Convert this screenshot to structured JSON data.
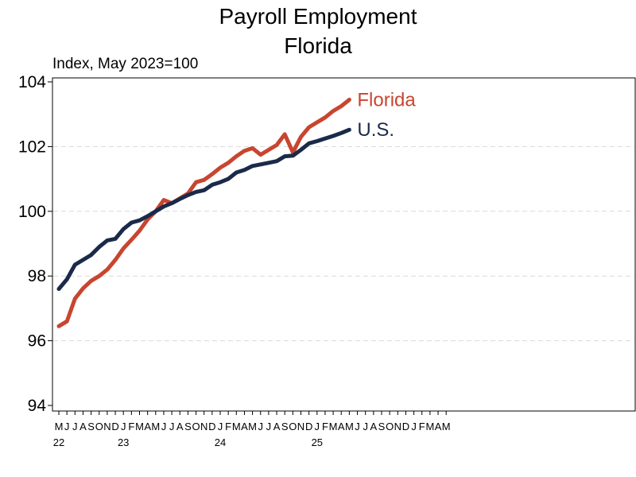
{
  "colors": {
    "florida": "#c8452f",
    "us": "#1b2a49",
    "grid": "#d9d9d9",
    "axis": "#000000"
  },
  "chart_data": {
    "type": "line",
    "title_line1": "Payroll Employment",
    "title_line2": "Florida",
    "ylabel": "Index, May 2023=100",
    "ylim": [
      94,
      104
    ],
    "yticks": [
      94,
      96,
      98,
      100,
      102,
      104
    ],
    "grid": "horizontal dashed at 96, 98, 100, 102",
    "x_month_labels": [
      "M",
      "J",
      "J",
      "A",
      "S",
      "O",
      "N",
      "D",
      "J",
      "F",
      "M",
      "A",
      "M",
      "J",
      "J",
      "A",
      "S",
      "O",
      "N",
      "D",
      "J",
      "F",
      "M",
      "A",
      "M",
      "J",
      "J",
      "A",
      "S",
      "O",
      "N",
      "D",
      "J",
      "F",
      "M",
      "A",
      "M",
      "J",
      "J",
      "A",
      "S",
      "O",
      "N",
      "D",
      "J",
      "F",
      "M",
      "A",
      "M"
    ],
    "x_year_labels": [
      {
        "label": "22",
        "month_index": 0
      },
      {
        "label": "23",
        "month_index": 8
      },
      {
        "label": "24",
        "month_index": 20
      },
      {
        "label": "25",
        "month_index": 32
      }
    ],
    "x_axis_months": 72,
    "series": [
      {
        "name": "Florida",
        "color_key": "florida",
        "values": [
          96.45,
          96.6,
          97.3,
          97.62,
          97.85,
          98.0,
          98.2,
          98.5,
          98.85,
          99.12,
          99.4,
          99.75,
          100.0,
          100.35,
          100.25,
          100.4,
          100.55,
          100.9,
          100.97,
          101.15,
          101.35,
          101.5,
          101.7,
          101.87,
          101.95,
          101.75,
          101.9,
          102.05,
          102.38,
          101.82,
          102.3,
          102.6,
          102.75,
          102.9,
          103.1,
          103.25,
          103.45
        ]
      },
      {
        "name": "U.S.",
        "color_key": "us",
        "values": [
          97.6,
          97.9,
          98.35,
          98.5,
          98.65,
          98.9,
          99.1,
          99.15,
          99.45,
          99.65,
          99.72,
          99.85,
          100.0,
          100.15,
          100.25,
          100.38,
          100.5,
          100.6,
          100.65,
          100.82,
          100.9,
          101.0,
          101.2,
          101.28,
          101.4,
          101.45,
          101.5,
          101.55,
          101.7,
          101.72,
          101.9,
          102.1,
          102.17,
          102.25,
          102.33,
          102.42,
          102.52
        ]
      }
    ]
  }
}
